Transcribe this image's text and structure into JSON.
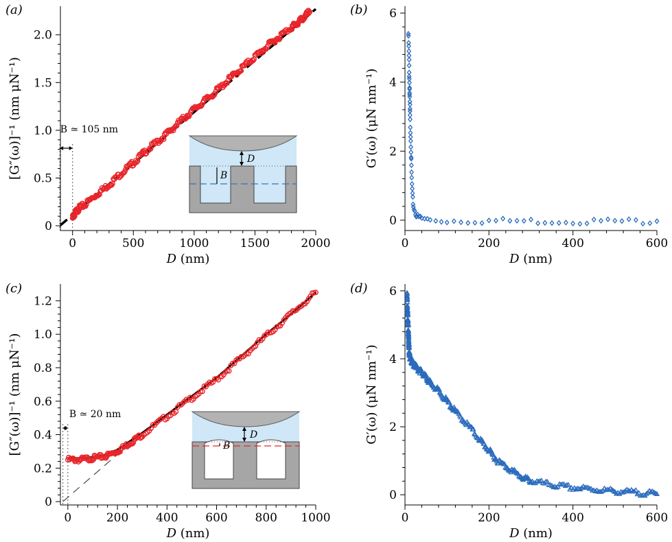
{
  "chart_data": [
    {
      "panel": "(a)",
      "type": "scatter",
      "xlabel_parts": [
        "D",
        " (nm)"
      ],
      "ylabel": "[G″(ω)]⁻¹ (nm μN⁻¹)",
      "xlim": [
        -100,
        2000
      ],
      "ylim": [
        -0.05,
        2.3
      ],
      "xticks": [
        0,
        500,
        1000,
        1500,
        2000
      ],
      "yticks": [
        0,
        0.5,
        1.0,
        1.5,
        2.0
      ],
      "ytick_labels": [
        "0",
        "0.5",
        "1.0",
        "1.5",
        "2.0"
      ],
      "annotation": "B ≃ 105 nm",
      "inset_labels": [
        "D",
        "B"
      ],
      "series": [
        {
          "kind": "points",
          "color": "#e8262b",
          "marker": "circle",
          "x": [
            0,
            20,
            50,
            100,
            200,
            300,
            400,
            500,
            600,
            700,
            800,
            900,
            1000,
            1100,
            1200,
            1300,
            1400,
            1500,
            1600,
            1700,
            1800,
            1850,
            1900,
            1950
          ],
          "y": [
            0.08,
            0.13,
            0.18,
            0.22,
            0.33,
            0.43,
            0.55,
            0.66,
            0.78,
            0.88,
            0.99,
            1.11,
            1.22,
            1.32,
            1.43,
            1.55,
            1.66,
            1.77,
            1.88,
            1.98,
            2.08,
            2.12,
            2.18,
            2.24
          ]
        },
        {
          "kind": "line",
          "color": "#000000",
          "dash": "dashed",
          "x": [
            -105,
            2000
          ],
          "y": [
            0.0,
            2.27
          ]
        }
      ]
    },
    {
      "panel": "(b)",
      "type": "scatter",
      "xlabel_parts": [
        "D",
        " (nm)"
      ],
      "ylabel": "G′(ω) (μN nm⁻¹)",
      "xlim": [
        0,
        600
      ],
      "ylim": [
        -0.3,
        6.2
      ],
      "xticks": [
        0,
        200,
        400,
        600
      ],
      "yticks": [
        0,
        2,
        4,
        6
      ],
      "ytick_labels": [
        "0",
        "2",
        "4",
        "6"
      ],
      "series": [
        {
          "kind": "points",
          "color": "#2a6bbd",
          "marker": "diamond",
          "x": [
            8,
            9,
            10,
            10,
            11,
            11,
            12,
            12,
            13,
            14,
            15,
            16,
            18,
            20,
            25,
            30,
            40,
            60,
            100,
            150,
            200,
            250,
            300,
            350,
            400,
            450,
            500,
            550,
            600
          ],
          "y": [
            5.4,
            5.0,
            4.6,
            4.2,
            3.9,
            3.6,
            3.3,
            3.0,
            2.6,
            2.2,
            1.7,
            1.2,
            0.7,
            0.4,
            0.2,
            0.1,
            0.05,
            0.0,
            -0.02,
            -0.02,
            -0.02,
            -0.02,
            -0.03,
            -0.03,
            -0.03,
            -0.03,
            -0.03,
            -0.03,
            -0.03
          ]
        }
      ]
    },
    {
      "panel": "(c)",
      "type": "scatter",
      "xlabel_parts": [
        "D",
        " (nm)"
      ],
      "ylabel": "[G″(ω)]⁻¹ (nm μN⁻¹)",
      "xlim": [
        -30,
        1000
      ],
      "ylim": [
        -0.02,
        1.3
      ],
      "xticks": [
        0,
        200,
        400,
        600,
        800,
        1000
      ],
      "yticks": [
        0,
        0.2,
        0.4,
        0.6,
        0.8,
        1.0,
        1.2
      ],
      "ytick_labels": [
        "0",
        "0.2",
        "0.4",
        "0.6",
        "0.8",
        "1.0",
        "1.2"
      ],
      "annotation": "B ≃ 20 nm",
      "inset_labels": [
        "D",
        "B"
      ],
      "series": [
        {
          "kind": "points",
          "color": "#e8262b",
          "marker": "circle",
          "x": [
            0,
            50,
            100,
            150,
            200,
            250,
            300,
            400,
            500,
            600,
            700,
            800,
            900,
            1000
          ],
          "y": [
            0.25,
            0.25,
            0.26,
            0.27,
            0.3,
            0.35,
            0.4,
            0.51,
            0.62,
            0.73,
            0.86,
            0.99,
            1.12,
            1.25
          ]
        },
        {
          "kind": "line",
          "color": "#000000",
          "dash": "solid",
          "x": [
            0,
            50,
            100,
            150,
            200,
            250,
            300,
            400,
            500,
            600,
            700,
            800,
            900,
            1000
          ],
          "y": [
            0.26,
            0.26,
            0.265,
            0.28,
            0.31,
            0.36,
            0.41,
            0.52,
            0.63,
            0.74,
            0.87,
            1.0,
            1.12,
            1.25
          ]
        },
        {
          "kind": "line",
          "color": "#555555",
          "dash": "longdash",
          "x": [
            -20,
            300
          ],
          "y": [
            0.0,
            0.41
          ]
        }
      ]
    },
    {
      "panel": "(d)",
      "type": "scatter",
      "xlabel_parts": [
        "D",
        " (nm)"
      ],
      "ylabel": "G′(ω) (μN nm⁻¹)",
      "xlim": [
        0,
        600
      ],
      "ylim": [
        -0.3,
        6.2
      ],
      "xticks": [
        0,
        200,
        400,
        600
      ],
      "yticks": [
        0,
        2,
        4,
        6
      ],
      "ytick_labels": [
        "0",
        "2",
        "4",
        "6"
      ],
      "series": [
        {
          "kind": "points",
          "color": "#2a6bbd",
          "marker": "triangle",
          "x": [
            5,
            6,
            7,
            8,
            9,
            10,
            12,
            15,
            20,
            30,
            40,
            50,
            60,
            80,
            100,
            120,
            150,
            180,
            200,
            220,
            250,
            280,
            300,
            350,
            400,
            450,
            500,
            550,
            600
          ],
          "y": [
            5.9,
            5.4,
            5.1,
            4.8,
            4.5,
            4.2,
            4.05,
            3.95,
            3.85,
            3.7,
            3.6,
            3.45,
            3.3,
            3.05,
            2.75,
            2.45,
            2.05,
            1.6,
            1.3,
            1.0,
            0.75,
            0.5,
            0.4,
            0.28,
            0.2,
            0.15,
            0.1,
            0.06,
            0.02
          ]
        }
      ]
    }
  ]
}
